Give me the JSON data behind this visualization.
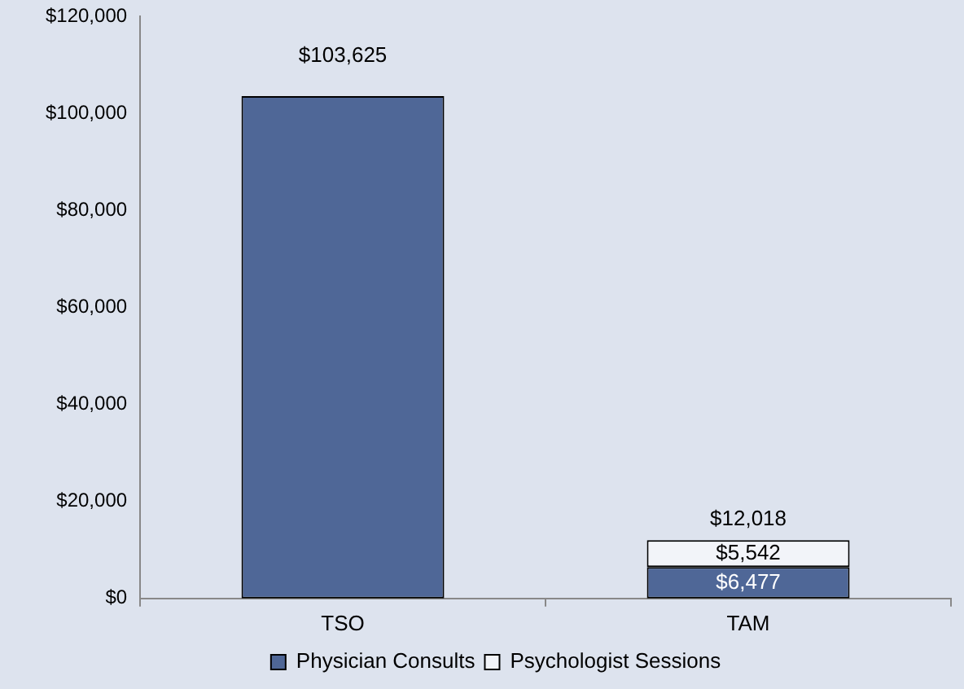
{
  "chart_data": {
    "type": "bar",
    "stacked": true,
    "categories": [
      "TSO",
      "TAM"
    ],
    "series": [
      {
        "name": "Physician Consults",
        "color": "#4f6797",
        "values": [
          103625,
          6477
        ],
        "value_labels": [
          null,
          "$6,477"
        ]
      },
      {
        "name": "Psychologist Sessions",
        "color": "#f2f4f9",
        "values": [
          null,
          5542
        ],
        "value_labels": [
          null,
          "$5,542"
        ]
      }
    ],
    "totals": [
      "$103,625",
      "$12,018"
    ],
    "ylim": [
      0,
      120000
    ],
    "yticks": [
      {
        "value": 0,
        "label": "$0"
      },
      {
        "value": 20000,
        "label": "$20,000"
      },
      {
        "value": 40000,
        "label": "$40,000"
      },
      {
        "value": 60000,
        "label": "$60,000"
      },
      {
        "value": 80000,
        "label": "$80,000"
      },
      {
        "value": 100000,
        "label": "$100,000"
      },
      {
        "value": 120000,
        "label": "$120,000"
      }
    ],
    "grid": false,
    "legend": "bottom"
  }
}
